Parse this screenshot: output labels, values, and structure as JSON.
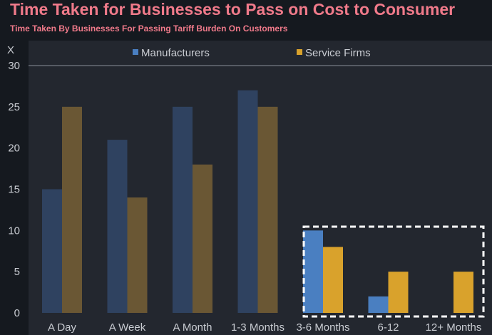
{
  "header": {
    "title": "Time Taken for Businesses to Pass on Cost to Consumer",
    "subtitle": "Time Taken By Businesses For Passing Tariff Burden On Customers"
  },
  "chart_data": {
    "type": "bar",
    "title": "Time Taken for Businesses to Pass on Cost to Consumer",
    "subtitle": "Time Taken By Businesses For Passing Tariff Burden On Customers",
    "ylabel": "X",
    "ylim": [
      0,
      30
    ],
    "yticks": [
      0,
      5,
      10,
      15,
      20,
      25,
      30
    ],
    "categories": [
      "A Day",
      "A Week",
      "A Month",
      "1-3 Months",
      "3-6 Months",
      "6-12",
      "12+ Months"
    ],
    "series": [
      {
        "name": "Manufacturers",
        "values": [
          15,
          21,
          25,
          27,
          10,
          2,
          0
        ],
        "color": "#4a7fc1",
        "dim_color": "#2f4260"
      },
      {
        "name": "Service Firms",
        "values": [
          25,
          14,
          18,
          25,
          8,
          5,
          5
        ],
        "color": "#d9a22c",
        "dim_color": "#6a5734"
      }
    ],
    "highlighted_categories": [
      "3-6 Months",
      "6-12",
      "12+ Months"
    ],
    "legend": "top-center",
    "grid": false
  }
}
